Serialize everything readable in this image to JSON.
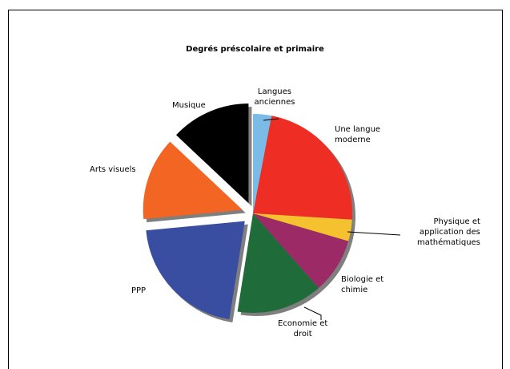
{
  "chart_data": {
    "type": "pie",
    "title": "Degrés préscolaire et primaire",
    "slices": [
      {
        "label": [
          "Langues",
          "anciennes"
        ],
        "value": 3,
        "color": "#7abbe8"
      },
      {
        "label": [
          "Une langue",
          "moderne"
        ],
        "value": 23,
        "color": "#ee2e24"
      },
      {
        "label": [
          "Physique et",
          "application des",
          "mathématiques"
        ],
        "value": 3.5,
        "color": "#f5c12e"
      },
      {
        "label": [
          "Biologie et",
          "chimie"
        ],
        "value": 9,
        "color": "#9c2a67"
      },
      {
        "label": [
          "Economie et",
          "droit"
        ],
        "value": 14,
        "color": "#1f6b3a"
      },
      {
        "label": [
          "PPP"
        ],
        "value": 21,
        "color": "#3a4ea1"
      },
      {
        "label": [
          "Arts visuels"
        ],
        "value": 13.5,
        "color": "#f26522"
      },
      {
        "label": [
          "Musique"
        ],
        "value": 13,
        "color": "#000000"
      }
    ],
    "exploded": [
      "PPP",
      "Arts visuels",
      "Musique"
    ],
    "legend": "none"
  }
}
